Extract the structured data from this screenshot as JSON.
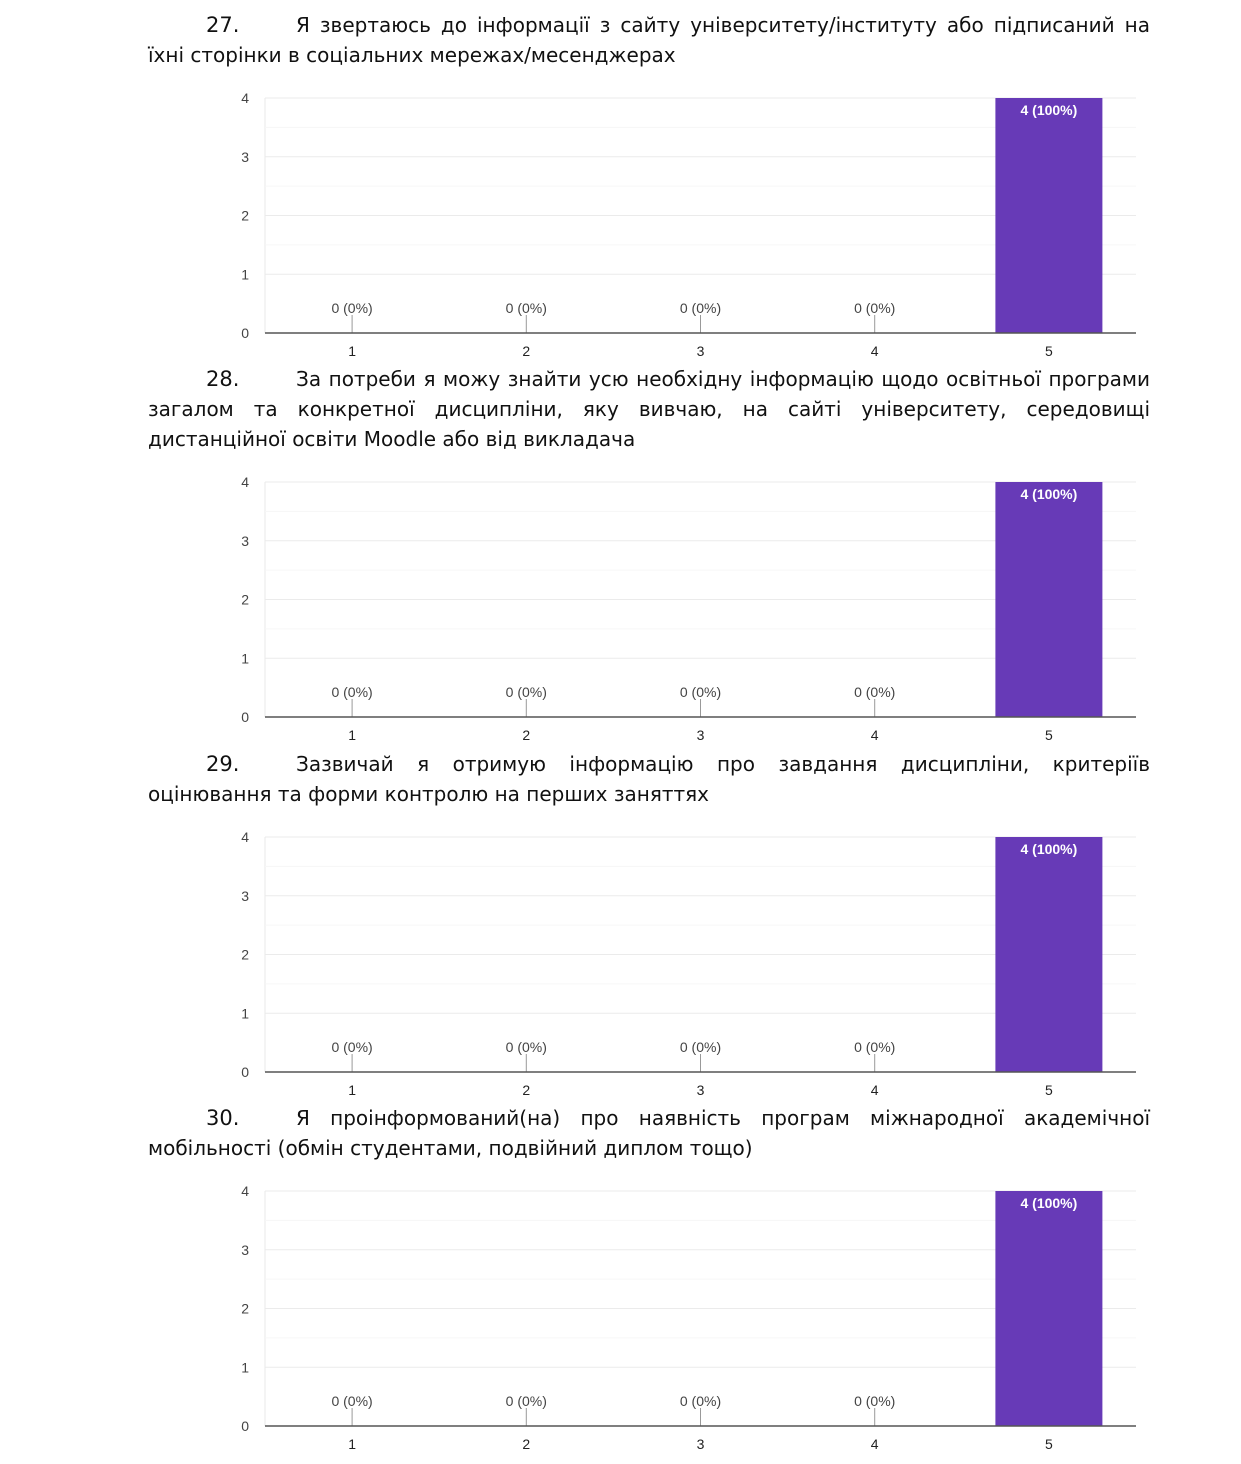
{
  "questions": [
    {
      "number": "27.",
      "text": "Я звертаюсь до інформації з сайту університету/інституту або підписаний на їхні сторінки в соціальних мережах/месенджерах"
    },
    {
      "number": "28.",
      "text": "За потреби я можу знайти усю необхідну інформацію щодо освітньої програми загалом та конкретної дисципліни, яку вивчаю, на сайті університету, середовищі дистанційної освіти Moodle або від викладача"
    },
    {
      "number": "29.",
      "text": "Зазвичай я отримую інформацію про завдання дисципліни, критеріїв оцінювання та форми контролю на перших заняттях"
    },
    {
      "number": "30.",
      "text": "Я проінформований(на) про наявність програм міжнародної академічної мобільності (обмін студентами, подвійний диплом тощо)"
    }
  ],
  "chart_data": [
    {
      "type": "bar",
      "categories": [
        "1",
        "2",
        "3",
        "4",
        "5"
      ],
      "values": [
        0,
        0,
        0,
        0,
        4
      ],
      "data_labels": [
        "0 (0%)",
        "0 (0%)",
        "0 (0%)",
        "0 (0%)",
        "4 (100%)"
      ],
      "ylim": [
        0,
        4
      ],
      "yticks": [
        "0",
        "1",
        "2",
        "3",
        "4"
      ],
      "grid": true,
      "color": "#673ab7"
    },
    {
      "type": "bar",
      "categories": [
        "1",
        "2",
        "3",
        "4",
        "5"
      ],
      "values": [
        0,
        0,
        0,
        0,
        4
      ],
      "data_labels": [
        "0 (0%)",
        "0 (0%)",
        "0 (0%)",
        "0 (0%)",
        "4 (100%)"
      ],
      "ylim": [
        0,
        4
      ],
      "yticks": [
        "0",
        "1",
        "2",
        "3",
        "4"
      ],
      "grid": true,
      "color": "#673ab7"
    },
    {
      "type": "bar",
      "categories": [
        "1",
        "2",
        "3",
        "4",
        "5"
      ],
      "values": [
        0,
        0,
        0,
        0,
        4
      ],
      "data_labels": [
        "0 (0%)",
        "0 (0%)",
        "0 (0%)",
        "0 (0%)",
        "4 (100%)"
      ],
      "ylim": [
        0,
        4
      ],
      "yticks": [
        "0",
        "1",
        "2",
        "3",
        "4"
      ],
      "grid": true,
      "color": "#673ab7"
    },
    {
      "type": "bar",
      "categories": [
        "1",
        "2",
        "3",
        "4",
        "5"
      ],
      "values": [
        0,
        0,
        0,
        0,
        4
      ],
      "data_labels": [
        "0 (0%)",
        "0 (0%)",
        "0 (0%)",
        "0 (0%)",
        "4 (100%)"
      ],
      "ylim": [
        0,
        4
      ],
      "yticks": [
        "0",
        "1",
        "2",
        "3",
        "4"
      ],
      "grid": true,
      "color": "#673ab7"
    }
  ]
}
